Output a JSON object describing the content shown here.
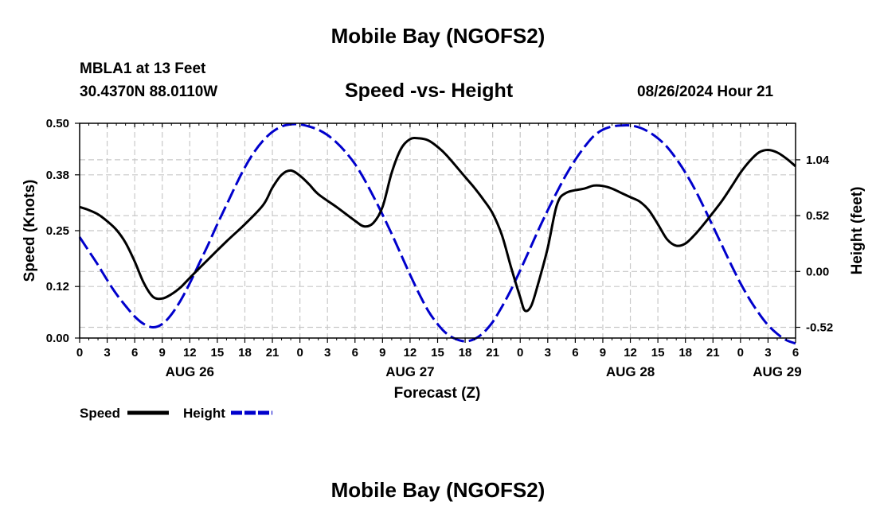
{
  "header": {
    "title": "Mobile Bay (NGOFS2)",
    "station": "MBLA1 at 13 Feet",
    "coords": "30.4370N  88.0110W",
    "subtitle": "Speed -vs- Height",
    "datetime": "08/26/2024 Hour 21"
  },
  "footer": {
    "title": "Mobile Bay (NGOFS2)"
  },
  "chart_data": {
    "type": "line",
    "title": "Speed -vs- Height",
    "xlabel": "Forecast (Z)",
    "ylabel": "Speed (Knots)",
    "y2label": "Height (feet)",
    "x_range_hours": [
      0,
      78
    ],
    "x_ticks": [
      {
        "h": 0,
        "label": "0"
      },
      {
        "h": 3,
        "label": "3"
      },
      {
        "h": 6,
        "label": "6"
      },
      {
        "h": 9,
        "label": "9"
      },
      {
        "h": 12,
        "label": "12"
      },
      {
        "h": 15,
        "label": "15"
      },
      {
        "h": 18,
        "label": "18"
      },
      {
        "h": 21,
        "label": "21"
      },
      {
        "h": 24,
        "label": "0"
      },
      {
        "h": 27,
        "label": "3"
      },
      {
        "h": 30,
        "label": "6"
      },
      {
        "h": 33,
        "label": "9"
      },
      {
        "h": 36,
        "label": "12"
      },
      {
        "h": 39,
        "label": "15"
      },
      {
        "h": 42,
        "label": "18"
      },
      {
        "h": 45,
        "label": "21"
      },
      {
        "h": 48,
        "label": "0"
      },
      {
        "h": 51,
        "label": "3"
      },
      {
        "h": 54,
        "label": "6"
      },
      {
        "h": 57,
        "label": "9"
      },
      {
        "h": 60,
        "label": "12"
      },
      {
        "h": 63,
        "label": "15"
      },
      {
        "h": 66,
        "label": "18"
      },
      {
        "h": 69,
        "label": "21"
      },
      {
        "h": 72,
        "label": "0"
      },
      {
        "h": 75,
        "label": "3"
      },
      {
        "h": 78,
        "label": "6"
      }
    ],
    "date_labels": [
      {
        "h": 12,
        "label": "AUG 26"
      },
      {
        "h": 36,
        "label": "AUG 27"
      },
      {
        "h": 60,
        "label": "AUG 28"
      },
      {
        "h": 76,
        "label": "AUG 29"
      }
    ],
    "ylim": [
      0,
      0.5
    ],
    "y_ticks": [
      "0.00",
      "0.12",
      "0.25",
      "0.38",
      "0.50"
    ],
    "y2lim": [
      -0.62,
      1.38
    ],
    "y2_ticks": [
      "-0.52",
      "0.00",
      "0.52",
      "1.04"
    ],
    "grid": true,
    "legend_position": "bottom-left",
    "series": [
      {
        "name": "Speed",
        "axis": "left",
        "color": "#000000",
        "style": "solid",
        "points": [
          [
            0,
            0.305
          ],
          [
            1,
            0.298
          ],
          [
            2,
            0.288
          ],
          [
            3,
            0.272
          ],
          [
            4,
            0.252
          ],
          [
            5,
            0.222
          ],
          [
            6,
            0.178
          ],
          [
            7,
            0.128
          ],
          [
            8,
            0.096
          ],
          [
            9,
            0.092
          ],
          [
            10,
            0.102
          ],
          [
            11,
            0.118
          ],
          [
            12,
            0.14
          ],
          [
            14,
            0.183
          ],
          [
            16,
            0.225
          ],
          [
            18,
            0.265
          ],
          [
            20,
            0.31
          ],
          [
            21,
            0.35
          ],
          [
            22,
            0.38
          ],
          [
            23,
            0.39
          ],
          [
            24,
            0.378
          ],
          [
            25,
            0.358
          ],
          [
            26,
            0.335
          ],
          [
            28,
            0.305
          ],
          [
            30,
            0.273
          ],
          [
            31,
            0.26
          ],
          [
            32,
            0.268
          ],
          [
            33,
            0.305
          ],
          [
            34,
            0.385
          ],
          [
            35,
            0.44
          ],
          [
            36,
            0.463
          ],
          [
            37,
            0.465
          ],
          [
            38,
            0.46
          ],
          [
            39,
            0.445
          ],
          [
            40,
            0.425
          ],
          [
            42,
            0.375
          ],
          [
            43,
            0.35
          ],
          [
            44,
            0.322
          ],
          [
            45,
            0.29
          ],
          [
            46,
            0.24
          ],
          [
            47,
            0.165
          ],
          [
            48,
            0.095
          ],
          [
            48.5,
            0.064
          ],
          [
            49.2,
            0.075
          ],
          [
            50,
            0.13
          ],
          [
            51,
            0.21
          ],
          [
            52,
            0.31
          ],
          [
            53,
            0.338
          ],
          [
            55,
            0.348
          ],
          [
            56,
            0.355
          ],
          [
            57,
            0.354
          ],
          [
            58,
            0.348
          ],
          [
            59,
            0.338
          ],
          [
            60,
            0.328
          ],
          [
            61,
            0.318
          ],
          [
            62,
            0.298
          ],
          [
            63,
            0.265
          ],
          [
            64,
            0.23
          ],
          [
            65,
            0.215
          ],
          [
            66,
            0.22
          ],
          [
            67,
            0.24
          ],
          [
            68,
            0.265
          ],
          [
            69,
            0.292
          ],
          [
            70,
            0.32
          ],
          [
            71,
            0.352
          ],
          [
            72,
            0.385
          ],
          [
            73,
            0.412
          ],
          [
            74,
            0.432
          ],
          [
            75,
            0.438
          ],
          [
            76,
            0.432
          ],
          [
            77,
            0.418
          ],
          [
            78,
            0.4
          ]
        ]
      },
      {
        "name": "Height",
        "axis": "right",
        "color": "#0000cc",
        "style": "dashed",
        "points": [
          [
            0,
            0.32
          ],
          [
            1,
            0.19
          ],
          [
            2,
            0.06
          ],
          [
            3,
            -0.08
          ],
          [
            4,
            -0.21
          ],
          [
            5,
            -0.32
          ],
          [
            6,
            -0.42
          ],
          [
            7,
            -0.49
          ],
          [
            8,
            -0.52
          ],
          [
            9,
            -0.49
          ],
          [
            10,
            -0.4
          ],
          [
            11,
            -0.27
          ],
          [
            12,
            -0.11
          ],
          [
            13,
            0.07
          ],
          [
            14,
            0.25
          ],
          [
            15,
            0.44
          ],
          [
            16,
            0.62
          ],
          [
            17,
            0.8
          ],
          [
            18,
            0.97
          ],
          [
            19,
            1.11
          ],
          [
            20,
            1.22
          ],
          [
            21,
            1.3
          ],
          [
            22,
            1.35
          ],
          [
            23,
            1.37
          ],
          [
            24,
            1.37
          ],
          [
            25,
            1.35
          ],
          [
            26,
            1.32
          ],
          [
            27,
            1.27
          ],
          [
            28,
            1.2
          ],
          [
            29,
            1.11
          ],
          [
            30,
            1.0
          ],
          [
            31,
            0.86
          ],
          [
            32,
            0.7
          ],
          [
            33,
            0.53
          ],
          [
            34,
            0.35
          ],
          [
            35,
            0.16
          ],
          [
            36,
            -0.03
          ],
          [
            37,
            -0.21
          ],
          [
            38,
            -0.37
          ],
          [
            39,
            -0.49
          ],
          [
            40,
            -0.58
          ],
          [
            41,
            -0.63
          ],
          [
            42,
            -0.65
          ],
          [
            43,
            -0.63
          ],
          [
            44,
            -0.57
          ],
          [
            45,
            -0.47
          ],
          [
            46,
            -0.33
          ],
          [
            47,
            -0.17
          ],
          [
            48,
            0.01
          ],
          [
            49,
            0.2
          ],
          [
            50,
            0.39
          ],
          [
            51,
            0.57
          ],
          [
            52,
            0.74
          ],
          [
            53,
            0.9
          ],
          [
            54,
            1.04
          ],
          [
            55,
            1.16
          ],
          [
            56,
            1.26
          ],
          [
            57,
            1.32
          ],
          [
            58,
            1.35
          ],
          [
            59,
            1.36
          ],
          [
            60,
            1.36
          ],
          [
            61,
            1.34
          ],
          [
            62,
            1.3
          ],
          [
            63,
            1.24
          ],
          [
            64,
            1.16
          ],
          [
            65,
            1.05
          ],
          [
            66,
            0.92
          ],
          [
            67,
            0.77
          ],
          [
            68,
            0.6
          ],
          [
            69,
            0.42
          ],
          [
            70,
            0.24
          ],
          [
            71,
            0.06
          ],
          [
            72,
            -0.11
          ],
          [
            73,
            -0.26
          ],
          [
            74,
            -0.39
          ],
          [
            75,
            -0.5
          ],
          [
            76,
            -0.58
          ],
          [
            77,
            -0.64
          ],
          [
            78,
            -0.67
          ]
        ]
      }
    ]
  }
}
